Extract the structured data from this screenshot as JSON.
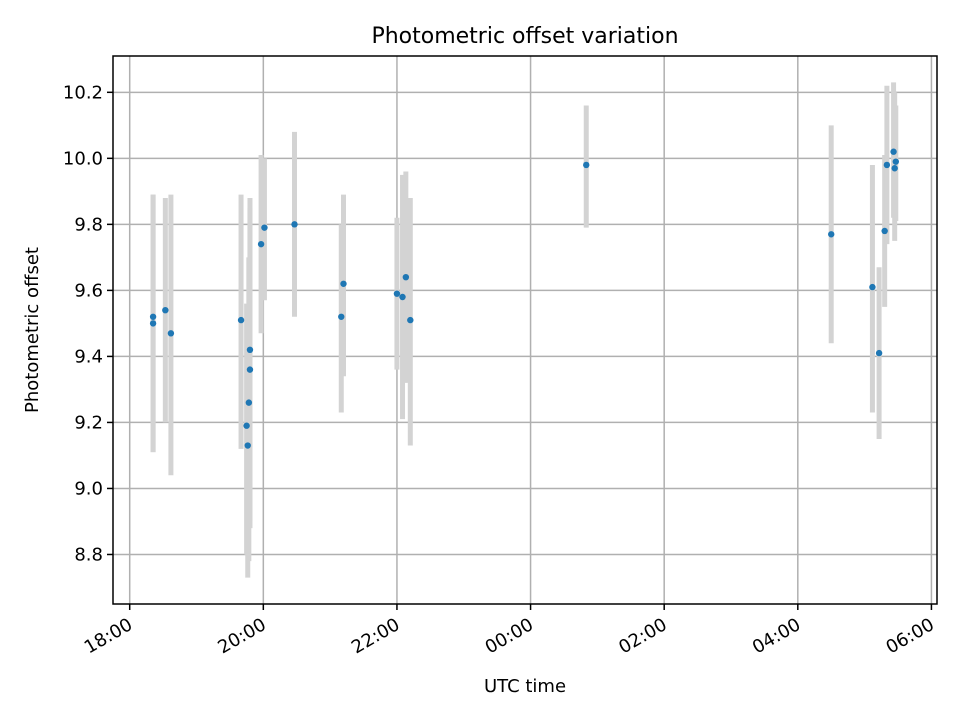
{
  "chart_data": {
    "type": "scatter",
    "title": "Photometric offset variation",
    "xlabel": "UTC time",
    "ylabel": "Photometric offset",
    "x_axis": {
      "kind": "time",
      "range": [
        "17:45",
        "30:05"
      ],
      "ticks": [
        "18:00",
        "20:00",
        "22:00",
        "00:00",
        "02:00",
        "04:00",
        "06:00"
      ]
    },
    "y_axis": {
      "range": [
        8.65,
        10.31
      ],
      "ticks": [
        "8.8",
        "9.0",
        "9.2",
        "9.4",
        "9.6",
        "9.8",
        "10.0",
        "10.2"
      ]
    },
    "grid": true,
    "errorbar_color": "#d3d3d3",
    "point_color": "#1f77b4",
    "points": [
      {
        "t": "18:21",
        "y": 9.52,
        "lo": 9.11,
        "hi": 9.89
      },
      {
        "t": "18:21",
        "y": 9.5,
        "lo": 9.11,
        "hi": 9.89
      },
      {
        "t": "18:32",
        "y": 9.54,
        "lo": 9.2,
        "hi": 9.88
      },
      {
        "t": "18:37",
        "y": 9.47,
        "lo": 9.04,
        "hi": 9.89
      },
      {
        "t": "19:40",
        "y": 9.51,
        "lo": 9.12,
        "hi": 9.89
      },
      {
        "t": "19:45",
        "y": 9.19,
        "lo": 8.8,
        "hi": 9.56
      },
      {
        "t": "19:46",
        "y": 9.13,
        "lo": 8.73,
        "hi": 9.54
      },
      {
        "t": "19:47",
        "y": 9.26,
        "lo": 8.78,
        "hi": 9.7
      },
      {
        "t": "19:48",
        "y": 9.36,
        "lo": 8.88,
        "hi": 9.85
      },
      {
        "t": "19:48",
        "y": 9.42,
        "lo": 8.9,
        "hi": 9.88
      },
      {
        "t": "19:58",
        "y": 9.74,
        "lo": 9.47,
        "hi": 10.01
      },
      {
        "t": "20:01",
        "y": 9.79,
        "lo": 9.57,
        "hi": 10.0
      },
      {
        "t": "20:28",
        "y": 9.8,
        "lo": 9.52,
        "hi": 10.08
      },
      {
        "t": "21:10",
        "y": 9.52,
        "lo": 9.23,
        "hi": 9.8
      },
      {
        "t": "21:12",
        "y": 9.62,
        "lo": 9.34,
        "hi": 9.89
      },
      {
        "t": "22:00",
        "y": 9.59,
        "lo": 9.36,
        "hi": 9.82
      },
      {
        "t": "22:05",
        "y": 9.58,
        "lo": 9.21,
        "hi": 9.95
      },
      {
        "t": "22:08",
        "y": 9.64,
        "lo": 9.32,
        "hi": 9.96
      },
      {
        "t": "22:12",
        "y": 9.51,
        "lo": 9.13,
        "hi": 9.88
      },
      {
        "t": "24:50",
        "y": 9.98,
        "lo": 9.79,
        "hi": 10.16
      },
      {
        "t": "28:30",
        "y": 9.77,
        "lo": 9.44,
        "hi": 10.1
      },
      {
        "t": "29:07",
        "y": 9.61,
        "lo": 9.23,
        "hi": 9.98
      },
      {
        "t": "29:13",
        "y": 9.41,
        "lo": 9.15,
        "hi": 9.67
      },
      {
        "t": "29:18",
        "y": 9.78,
        "lo": 9.55,
        "hi": 10.01
      },
      {
        "t": "29:20",
        "y": 9.98,
        "lo": 9.74,
        "hi": 10.22
      },
      {
        "t": "29:26",
        "y": 10.02,
        "lo": 9.82,
        "hi": 10.23
      },
      {
        "t": "29:27",
        "y": 9.97,
        "lo": 9.75,
        "hi": 10.2
      },
      {
        "t": "29:28",
        "y": 9.99,
        "lo": 9.81,
        "hi": 10.16
      }
    ]
  }
}
